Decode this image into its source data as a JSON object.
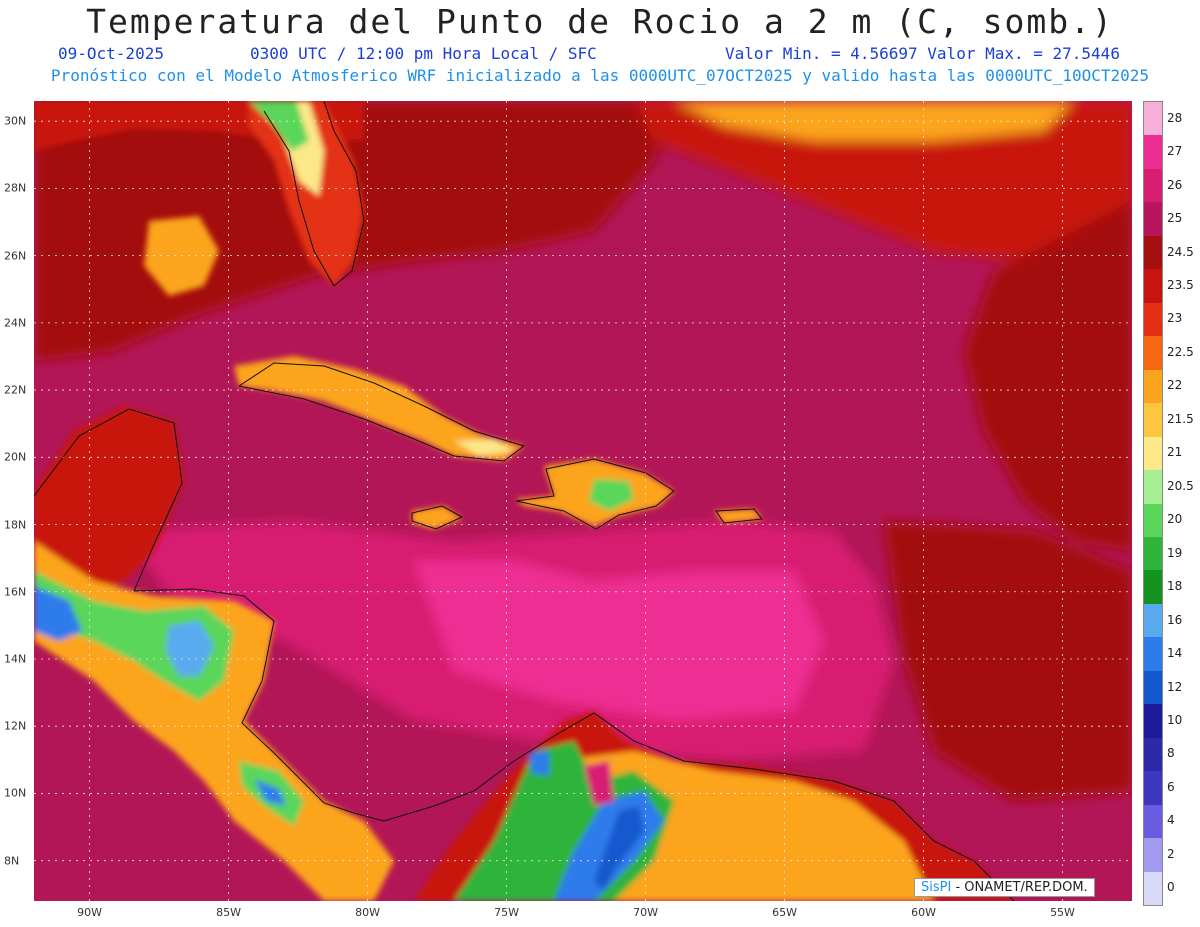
{
  "title": "Temperatura del Punto de Rocio a 2 m (C, somb.)",
  "subtitle": {
    "date": "09-Oct-2025",
    "time": "0300 UTC / 12:00 pm Hora Local / SFC",
    "range": "Valor Min. = 4.56697  Valor Max. = 27.5446"
  },
  "model_line": "Pronóstico con el Modelo Atmosferico WRF inicializado a las 0000UTC_07OCT2025 y valido hasta las  0000UTC_10OCT2025",
  "credit": {
    "brand": "SisPI",
    "rest": "- ONAMET/REP.DOM."
  },
  "axes": {
    "lon_labels": [
      "90W",
      "85W",
      "80W",
      "75W",
      "70W",
      "65W",
      "60W",
      "55W"
    ],
    "lon_values": [
      -90,
      -85,
      -80,
      -75,
      -70,
      -65,
      -60,
      -55
    ],
    "lat_labels": [
      "8N",
      "10N",
      "12N",
      "14N",
      "16N",
      "18N",
      "20N",
      "22N",
      "24N",
      "26N",
      "28N",
      "30N"
    ],
    "lat_values": [
      8,
      10,
      12,
      14,
      16,
      18,
      20,
      22,
      24,
      26,
      28,
      30
    ],
    "lon_range": [
      -92,
      -52.5
    ],
    "lat_range": [
      6.8,
      30.6
    ]
  },
  "colorbar": {
    "labels": [
      "28",
      "27",
      "26",
      "25",
      "24.5",
      "23.5",
      "23",
      "22.5",
      "22",
      "21.5",
      "21",
      "20.5",
      "20",
      "19",
      "18",
      "16",
      "14",
      "12",
      "10",
      "8",
      "6",
      "4",
      "2",
      "0"
    ],
    "colors": [
      "#f6b0d8",
      "#ee2d92",
      "#d81e72",
      "#b7155c",
      "#a40f10",
      "#c81410",
      "#e43012",
      "#f56712",
      "#fca41e",
      "#fcc640",
      "#fce888",
      "#a5ee92",
      "#5ad65a",
      "#2eb43a",
      "#13921f",
      "#5aaaf0",
      "#2d7cec",
      "#1358cf",
      "#1e1a9c",
      "#2d2aa8",
      "#3d36bf",
      "#6a5ce0",
      "#a39af0",
      "#d8d8f8"
    ]
  },
  "map": {
    "background_color": "#b21656",
    "features": [
      {
        "name": "Gulf-of-Mexico",
        "value": 24.5
      },
      {
        "name": "Florida",
        "value": 21
      },
      {
        "name": "Cuba",
        "value": 22
      },
      {
        "name": "Hispaniola",
        "value": 20.5
      },
      {
        "name": "Yucatan",
        "value": 24
      },
      {
        "name": "Central-America",
        "value": 16
      },
      {
        "name": "South-America",
        "value": 14
      },
      {
        "name": "Caribbean-Sea",
        "value": 26
      }
    ]
  }
}
